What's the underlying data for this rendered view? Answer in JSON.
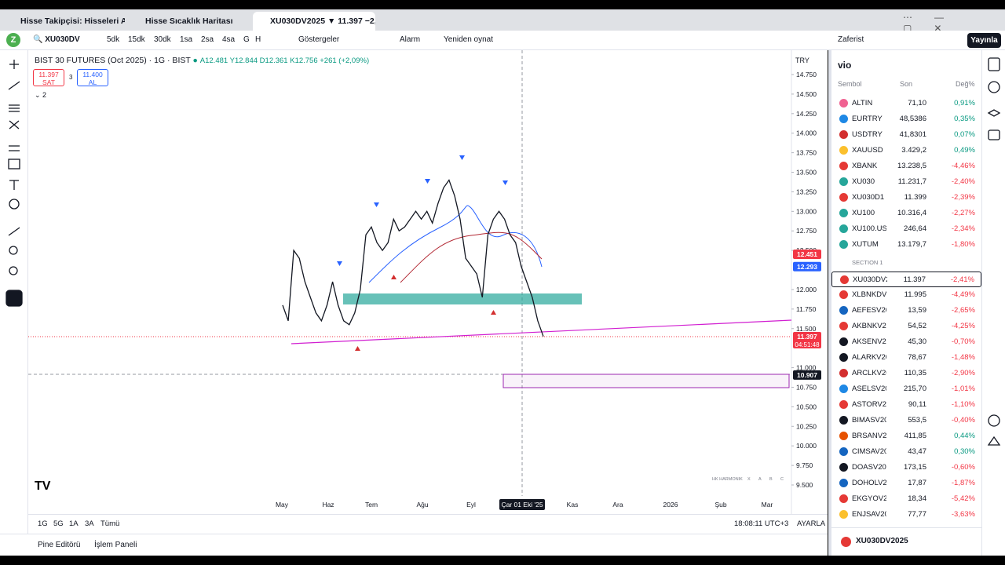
{
  "tabs": [
    "Hisse Takipçisi: Hisseleri Araya",
    "Hisse Sıcaklık Haritası",
    "XU030DV2025 ▼ 11.397 −2,4"
  ],
  "toolbar": {
    "symbol": "XU030DV",
    "intervals": [
      "5dk",
      "15dk",
      "30dk",
      "1sa",
      "2sa",
      "4sa",
      "G",
      "H"
    ],
    "indicators": "Göstergeler",
    "alarm": "Alarm",
    "replay": "Yeniden oynat",
    "layout": "Zaferist",
    "publish": "Yayınla"
  },
  "chart": {
    "legend": "BIST 30 FUTURES (Oct 2025) · 1G · BIST",
    "ohlc": "A12.481 Y12.844 D12.361 K12.756 +261 (+2,09%)",
    "sell_price": "11.397",
    "sell": "SAT",
    "spread": "3",
    "buy_price": "11.400",
    "buy": "AL",
    "indicator_count": "2",
    "currency": "TRY",
    "ylim": [
      9.5,
      14.75
    ],
    "yticks": [
      {
        "value": 14.75,
        "label": "14.750"
      },
      {
        "value": 14.5,
        "label": "14.500"
      },
      {
        "value": 14.25,
        "label": "14.250"
      },
      {
        "value": 14.0,
        "label": "14.000"
      },
      {
        "value": 13.75,
        "label": "13.750"
      },
      {
        "value": 13.5,
        "label": "13.500"
      },
      {
        "value": 13.25,
        "label": "13.250"
      },
      {
        "value": 13.0,
        "label": "13.000"
      },
      {
        "value": 12.75,
        "label": "12.750"
      },
      {
        "value": 12.5,
        "label": "12.500"
      },
      {
        "value": 12.0,
        "label": "12.000"
      },
      {
        "value": 11.75,
        "label": "11.750"
      },
      {
        "value": 11.5,
        "label": "11.500"
      },
      {
        "value": 11.0,
        "label": "11.000"
      },
      {
        "value": 10.75,
        "label": "10.750"
      },
      {
        "value": 10.5,
        "label": "10.500"
      },
      {
        "value": 10.25,
        "label": "10.250"
      },
      {
        "value": 10.0,
        "label": "10.000"
      },
      {
        "value": 9.75,
        "label": "9.750"
      },
      {
        "value": 9.5,
        "label": "9.500"
      }
    ],
    "price_labels": [
      {
        "value": 12.451,
        "label": "12.451",
        "color": "#f23645"
      },
      {
        "value": 12.293,
        "label": "12.293",
        "color": "#2962ff"
      },
      {
        "value": 11.397,
        "label": "11.397",
        "color": "#f23645"
      },
      {
        "value": 10.907,
        "label": "10.907",
        "color": "#131722"
      }
    ],
    "countdown": "04:51:48",
    "x_labels": [
      "May",
      "Haz",
      "Tem",
      "Ağu",
      "Eyl",
      "Çar 01 Eki '25",
      "Kas",
      "Ara",
      "2026",
      "Şub",
      "Mar"
    ],
    "closes": [
      11.8,
      11.6,
      12.5,
      12.4,
      12.1,
      11.9,
      11.7,
      11.6,
      11.8,
      12.1,
      11.8,
      11.6,
      11.55,
      11.7,
      12.0,
      12.7,
      12.8,
      12.6,
      12.5,
      12.6,
      12.9,
      12.75,
      12.8,
      12.9,
      13.0,
      12.9,
      13.0,
      12.85,
      13.1,
      13.3,
      13.4,
      13.2,
      12.9,
      12.4,
      12.3,
      12.2,
      11.9,
      12.7,
      12.9,
      13.0,
      12.9,
      12.7,
      12.6,
      12.3,
      12.1,
      11.9,
      11.6,
      11.4
    ],
    "pattern_tool": [
      "HK HARMONIK",
      "X",
      "A",
      "B",
      "C"
    ]
  },
  "bottom": {
    "ranges": [
      "1G",
      "5G",
      "1A",
      "3A",
      "Tümü"
    ],
    "time": "18:08:11 UTC+3",
    "adjust": "AYARLA",
    "pine": "Pine Editörü",
    "trade": "İşlem Paneli"
  },
  "watchlist": {
    "title": "vio",
    "headers": [
      "Sembol",
      "Son",
      "Değ%"
    ],
    "section": "SECTION 1",
    "footer": "XU030DV2025",
    "rows": [
      [
        "ALTIN",
        "71,10",
        "0,91%"
      ],
      [
        "EURTRY",
        "48,5386",
        "0,35%"
      ],
      [
        "USDTRY",
        "41,8301",
        "0,07%"
      ],
      [
        "XAUUSD",
        "3.429,2",
        "0,49%"
      ],
      [
        "XBANK",
        "13.238,5",
        "-4,46%"
      ],
      [
        "XU030",
        "11.231,7",
        "-2,40%"
      ],
      [
        "XU030D1",
        "11.399",
        "-2,39%"
      ],
      [
        "XU100",
        "10.316,4",
        "-2,27%"
      ],
      [
        "XU100.USD",
        "246,64",
        "-2,34%"
      ],
      [
        "XUTUM",
        "13.179,7",
        "-1,80%"
      ]
    ],
    "section_rows": [
      [
        "XU030DV2",
        "11.397",
        "-2,41%"
      ],
      [
        "XLBNKDV2",
        "11.995",
        "-4,49%"
      ],
      [
        "AEFESV20",
        "13,59",
        "-2,65%"
      ],
      [
        "AKBNKV20",
        "54,52",
        "-4,25%"
      ],
      [
        "AKSENV20",
        "45,30",
        "-0,70%"
      ],
      [
        "ALARKV20",
        "78,67",
        "-1,48%"
      ],
      [
        "ARCLKV20",
        "110,35",
        "-2,90%"
      ],
      [
        "ASELSV202",
        "215,70",
        "-1,01%"
      ],
      [
        "ASTORV20",
        "90,11",
        "-1,10%"
      ],
      [
        "BIMASV202",
        "553,5",
        "-0,40%"
      ],
      [
        "BRSANV20",
        "411,85",
        "0,44%"
      ],
      [
        "CIMSAV202",
        "43,47",
        "0,30%"
      ],
      [
        "DOASV202",
        "173,15",
        "-0,60%"
      ],
      [
        "DOHOLV20",
        "17,87",
        "-1,87%"
      ],
      [
        "EKGYOV20",
        "18,34",
        "-5,42%"
      ],
      [
        "ENJSAV202",
        "77,77",
        "-3,63%"
      ]
    ]
  }
}
